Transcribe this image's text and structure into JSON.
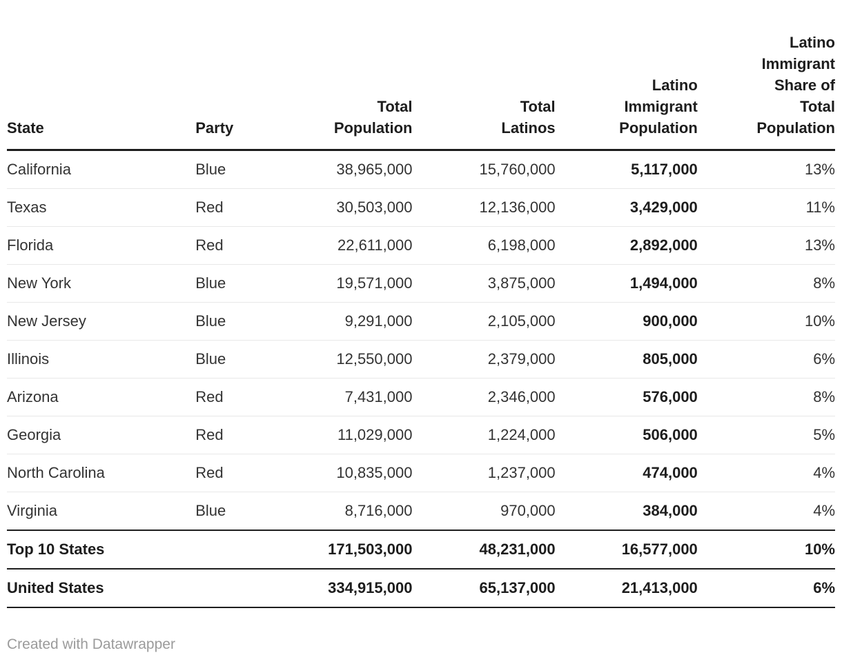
{
  "chart_data": {
    "type": "table",
    "columns": [
      {
        "key": "state",
        "label": "State",
        "align": "left"
      },
      {
        "key": "party",
        "label": "Party",
        "align": "left"
      },
      {
        "key": "total_population",
        "label": "Total\nPopulation",
        "align": "right"
      },
      {
        "key": "total_latinos",
        "label": "Total\nLatinos",
        "align": "right"
      },
      {
        "key": "latino_immigrant_population",
        "label": "Latino\nImmigrant\nPopulation",
        "align": "right",
        "emphasized": true
      },
      {
        "key": "latino_immigrant_share",
        "label": "Latino\nImmigrant\nShare of\nTotal\nPopulation",
        "align": "right"
      }
    ],
    "rows": [
      {
        "state": "California",
        "party": "Blue",
        "total_population": "38,965,000",
        "total_latinos": "15,760,000",
        "latino_immigrant_population": "5,117,000",
        "latino_immigrant_share": "13%",
        "is_total": false
      },
      {
        "state": "Texas",
        "party": "Red",
        "total_population": "30,503,000",
        "total_latinos": "12,136,000",
        "latino_immigrant_population": "3,429,000",
        "latino_immigrant_share": "11%",
        "is_total": false
      },
      {
        "state": "Florida",
        "party": "Red",
        "total_population": "22,611,000",
        "total_latinos": "6,198,000",
        "latino_immigrant_population": "2,892,000",
        "latino_immigrant_share": "13%",
        "is_total": false
      },
      {
        "state": "New York",
        "party": "Blue",
        "total_population": "19,571,000",
        "total_latinos": "3,875,000",
        "latino_immigrant_population": "1,494,000",
        "latino_immigrant_share": "8%",
        "is_total": false
      },
      {
        "state": "New Jersey",
        "party": "Blue",
        "total_population": "9,291,000",
        "total_latinos": "2,105,000",
        "latino_immigrant_population": "900,000",
        "latino_immigrant_share": "10%",
        "is_total": false
      },
      {
        "state": "Illinois",
        "party": "Blue",
        "total_population": "12,550,000",
        "total_latinos": "2,379,000",
        "latino_immigrant_population": "805,000",
        "latino_immigrant_share": "6%",
        "is_total": false
      },
      {
        "state": "Arizona",
        "party": "Red",
        "total_population": "7,431,000",
        "total_latinos": "2,346,000",
        "latino_immigrant_population": "576,000",
        "latino_immigrant_share": "8%",
        "is_total": false
      },
      {
        "state": "Georgia",
        "party": "Red",
        "total_population": "11,029,000",
        "total_latinos": "1,224,000",
        "latino_immigrant_population": "506,000",
        "latino_immigrant_share": "5%",
        "is_total": false
      },
      {
        "state": "North Carolina",
        "party": "Red",
        "total_population": "10,835,000",
        "total_latinos": "1,237,000",
        "latino_immigrant_population": "474,000",
        "latino_immigrant_share": "4%",
        "is_total": false
      },
      {
        "state": "Virginia",
        "party": "Blue",
        "total_population": "8,716,000",
        "total_latinos": "970,000",
        "latino_immigrant_population": "384,000",
        "latino_immigrant_share": "4%",
        "is_total": false
      },
      {
        "state": "Top 10 States",
        "party": "",
        "total_population": "171,503,000",
        "total_latinos": "48,231,000",
        "latino_immigrant_population": "16,577,000",
        "latino_immigrant_share": "10%",
        "is_total": true
      },
      {
        "state": "United States",
        "party": "",
        "total_population": "334,915,000",
        "total_latinos": "65,137,000",
        "latino_immigrant_population": "21,413,000",
        "latino_immigrant_share": "6%",
        "is_total": true
      }
    ]
  },
  "footer": {
    "credit": "Created with Datawrapper"
  },
  "colors": {
    "text_primary": "#333333",
    "text_emphasis": "#1d1d1d",
    "text_muted": "#9b9b9b",
    "rule_dark": "#1d1d1d",
    "rule_light": "#e8e8e8",
    "background": "#ffffff"
  }
}
